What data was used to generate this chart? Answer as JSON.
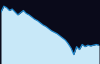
{
  "x": [
    0,
    1,
    2,
    3,
    4,
    5,
    6,
    7,
    8,
    9,
    10,
    11,
    12,
    13,
    14,
    15,
    16,
    17,
    18,
    19,
    20,
    21,
    22,
    23,
    24,
    25,
    26,
    27,
    28,
    29,
    30,
    31,
    32,
    33,
    34,
    35
  ],
  "y": [
    72,
    80,
    78,
    74,
    76,
    72,
    68,
    71,
    74,
    70,
    68,
    65,
    62,
    60,
    57,
    54,
    52,
    49,
    46,
    44,
    42,
    39,
    36,
    33,
    28,
    22,
    13,
    24,
    20,
    27,
    24,
    26,
    25,
    26,
    27,
    26
  ],
  "line_color": "#2288cc",
  "fill_color": "#c8e8f8",
  "background_color": "#000000",
  "border_color": "#1a1a2e",
  "ylim_min": 0,
  "ylim_max": 85,
  "linewidth": 0.9
}
